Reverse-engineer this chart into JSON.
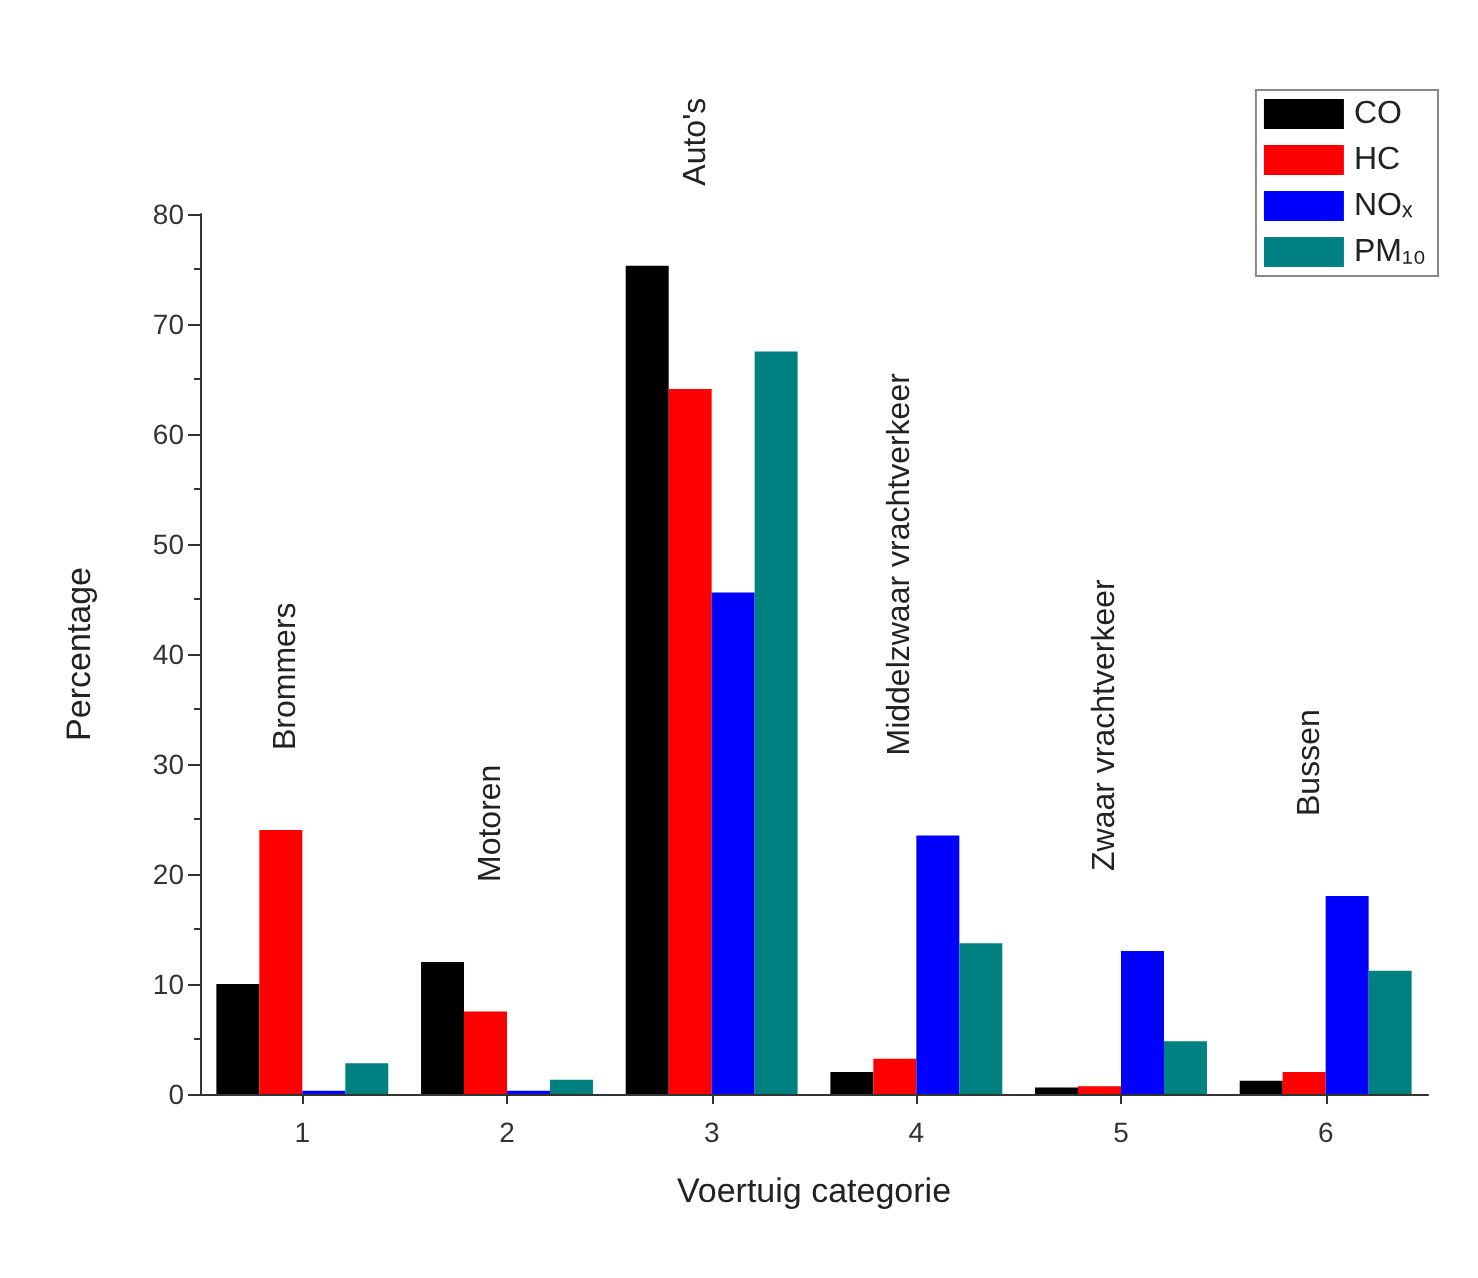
{
  "chart_data": {
    "type": "bar",
    "xlabel": "Voertuig categorie",
    "ylabel": "Percentage",
    "categories": [
      "1",
      "2",
      "3",
      "4",
      "5",
      "6"
    ],
    "series": [
      {
        "name": "CO",
        "color": "#000000",
        "values": [
          10,
          12,
          75.3,
          2,
          0.6,
          1.2
        ]
      },
      {
        "name": "HC",
        "color": "#ff0000",
        "values": [
          24,
          7.5,
          64.1,
          3.2,
          0.7,
          2
        ]
      },
      {
        "name": "NOₓ",
        "color": "#0000ff",
        "values": [
          0.3,
          0.3,
          45.6,
          23.5,
          13,
          18
        ]
      },
      {
        "name": "PM₁₀",
        "color": "#008080",
        "values": [
          2.8,
          1.3,
          67.5,
          13.7,
          4.8,
          11.2
        ]
      }
    ],
    "ylim": [
      0,
      80
    ],
    "yticks": [
      0,
      10,
      20,
      30,
      40,
      50,
      60,
      70,
      80
    ],
    "grid": false,
    "legend": "top right",
    "annotations": [
      "Brommers",
      "Motoren",
      "Auto's",
      "Middelzwaar vrachtverkeer",
      "Zwaar vrachtverkeer",
      "Bussen"
    ]
  }
}
